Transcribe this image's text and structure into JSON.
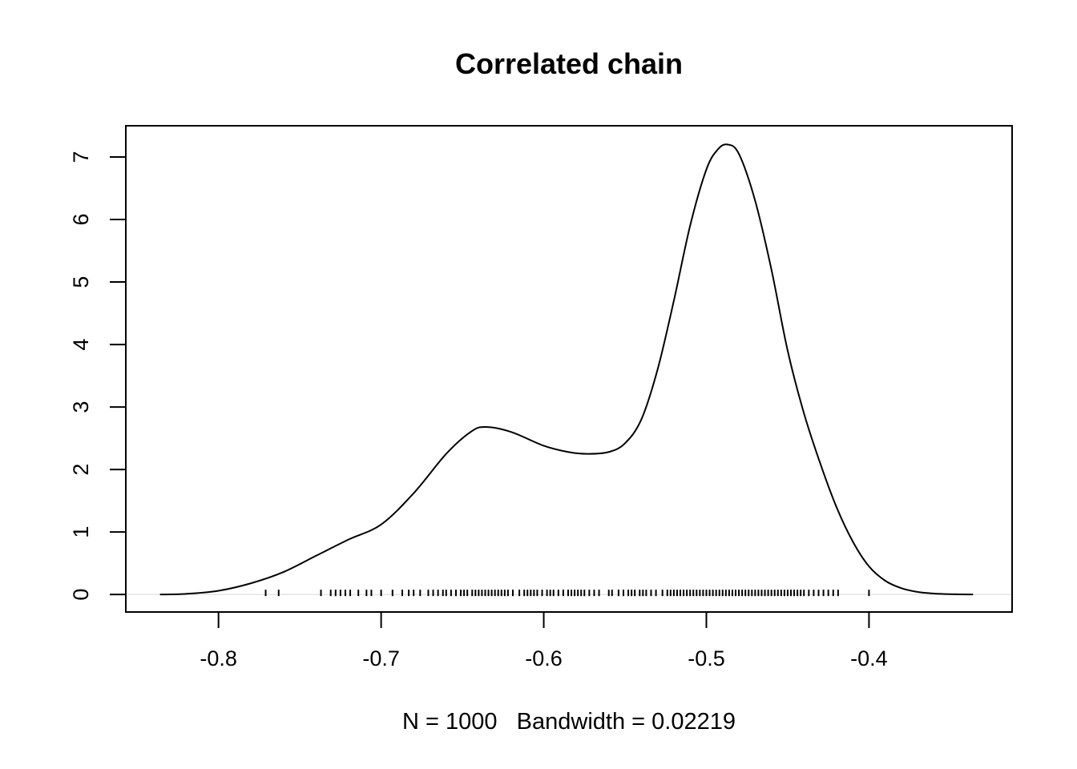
{
  "chart_data": {
    "type": "line",
    "title": "Correlated chain",
    "xlabel": "N = 1000   Bandwidth = 0.02219",
    "ylabel": "",
    "xlim": [
      -0.857,
      -0.312
    ],
    "ylim": [
      -0.28,
      7.5
    ],
    "x_ticks": [
      -0.8,
      -0.7,
      -0.6,
      -0.5,
      -0.4
    ],
    "x_tick_labels": [
      "-0.8",
      "-0.7",
      "-0.6",
      "-0.5",
      "-0.4"
    ],
    "y_ticks": [
      0,
      1,
      2,
      3,
      4,
      5,
      6,
      7
    ],
    "y_tick_labels": [
      "0",
      "1",
      "2",
      "3",
      "4",
      "5",
      "6",
      "7"
    ],
    "grid": false,
    "legend": "none",
    "series": [
      {
        "x": [
          -0.836,
          -0.82,
          -0.8,
          -0.78,
          -0.76,
          -0.74,
          -0.72,
          -0.7,
          -0.68,
          -0.66,
          -0.645,
          -0.636,
          -0.62,
          -0.6,
          -0.585,
          -0.573,
          -0.56,
          -0.55,
          -0.54,
          -0.53,
          -0.52,
          -0.51,
          -0.5,
          -0.493,
          -0.487,
          -0.48,
          -0.47,
          -0.46,
          -0.45,
          -0.44,
          -0.43,
          -0.42,
          -0.41,
          -0.4,
          -0.39,
          -0.38,
          -0.37,
          -0.36,
          -0.35,
          -0.336
        ],
        "y": [
          0.0,
          0.01,
          0.06,
          0.18,
          0.36,
          0.62,
          0.88,
          1.12,
          1.62,
          2.25,
          2.6,
          2.68,
          2.6,
          2.38,
          2.28,
          2.25,
          2.28,
          2.42,
          2.8,
          3.6,
          4.7,
          5.9,
          6.8,
          7.12,
          7.2,
          7.05,
          6.3,
          5.2,
          3.9,
          2.9,
          2.1,
          1.4,
          0.85,
          0.45,
          0.22,
          0.1,
          0.04,
          0.015,
          0.005,
          0.0
        ]
      }
    ],
    "rug": [
      -0.771,
      -0.763,
      -0.737,
      -0.731,
      -0.728,
      -0.725,
      -0.722,
      -0.719,
      -0.714,
      -0.709,
      -0.706,
      -0.7,
      -0.693,
      -0.687,
      -0.683,
      -0.68,
      -0.676,
      -0.671,
      -0.668,
      -0.665,
      -0.662,
      -0.66,
      -0.657,
      -0.654,
      -0.651,
      -0.649,
      -0.647,
      -0.644,
      -0.642,
      -0.64,
      -0.638,
      -0.636,
      -0.634,
      -0.632,
      -0.63,
      -0.628,
      -0.626,
      -0.624,
      -0.622,
      -0.619,
      -0.615,
      -0.612,
      -0.61,
      -0.608,
      -0.606,
      -0.604,
      -0.601,
      -0.598,
      -0.596,
      -0.594,
      -0.591,
      -0.588,
      -0.585,
      -0.583,
      -0.581,
      -0.579,
      -0.577,
      -0.575,
      -0.572,
      -0.569,
      -0.566,
      -0.56,
      -0.558,
      -0.554,
      -0.551,
      -0.548,
      -0.546,
      -0.544,
      -0.541,
      -0.539,
      -0.537,
      -0.534,
      -0.531,
      -0.527,
      -0.524,
      -0.522,
      -0.52,
      -0.518,
      -0.516,
      -0.514,
      -0.512,
      -0.51,
      -0.508,
      -0.506,
      -0.504,
      -0.502,
      -0.5,
      -0.498,
      -0.496,
      -0.494,
      -0.492,
      -0.49,
      -0.488,
      -0.486,
      -0.484,
      -0.482,
      -0.48,
      -0.478,
      -0.476,
      -0.474,
      -0.472,
      -0.47,
      -0.468,
      -0.466,
      -0.464,
      -0.462,
      -0.46,
      -0.458,
      -0.456,
      -0.454,
      -0.452,
      -0.45,
      -0.448,
      -0.446,
      -0.444,
      -0.442,
      -0.44,
      -0.437,
      -0.434,
      -0.431,
      -0.428,
      -0.425,
      -0.422,
      -0.419,
      -0.4
    ]
  }
}
